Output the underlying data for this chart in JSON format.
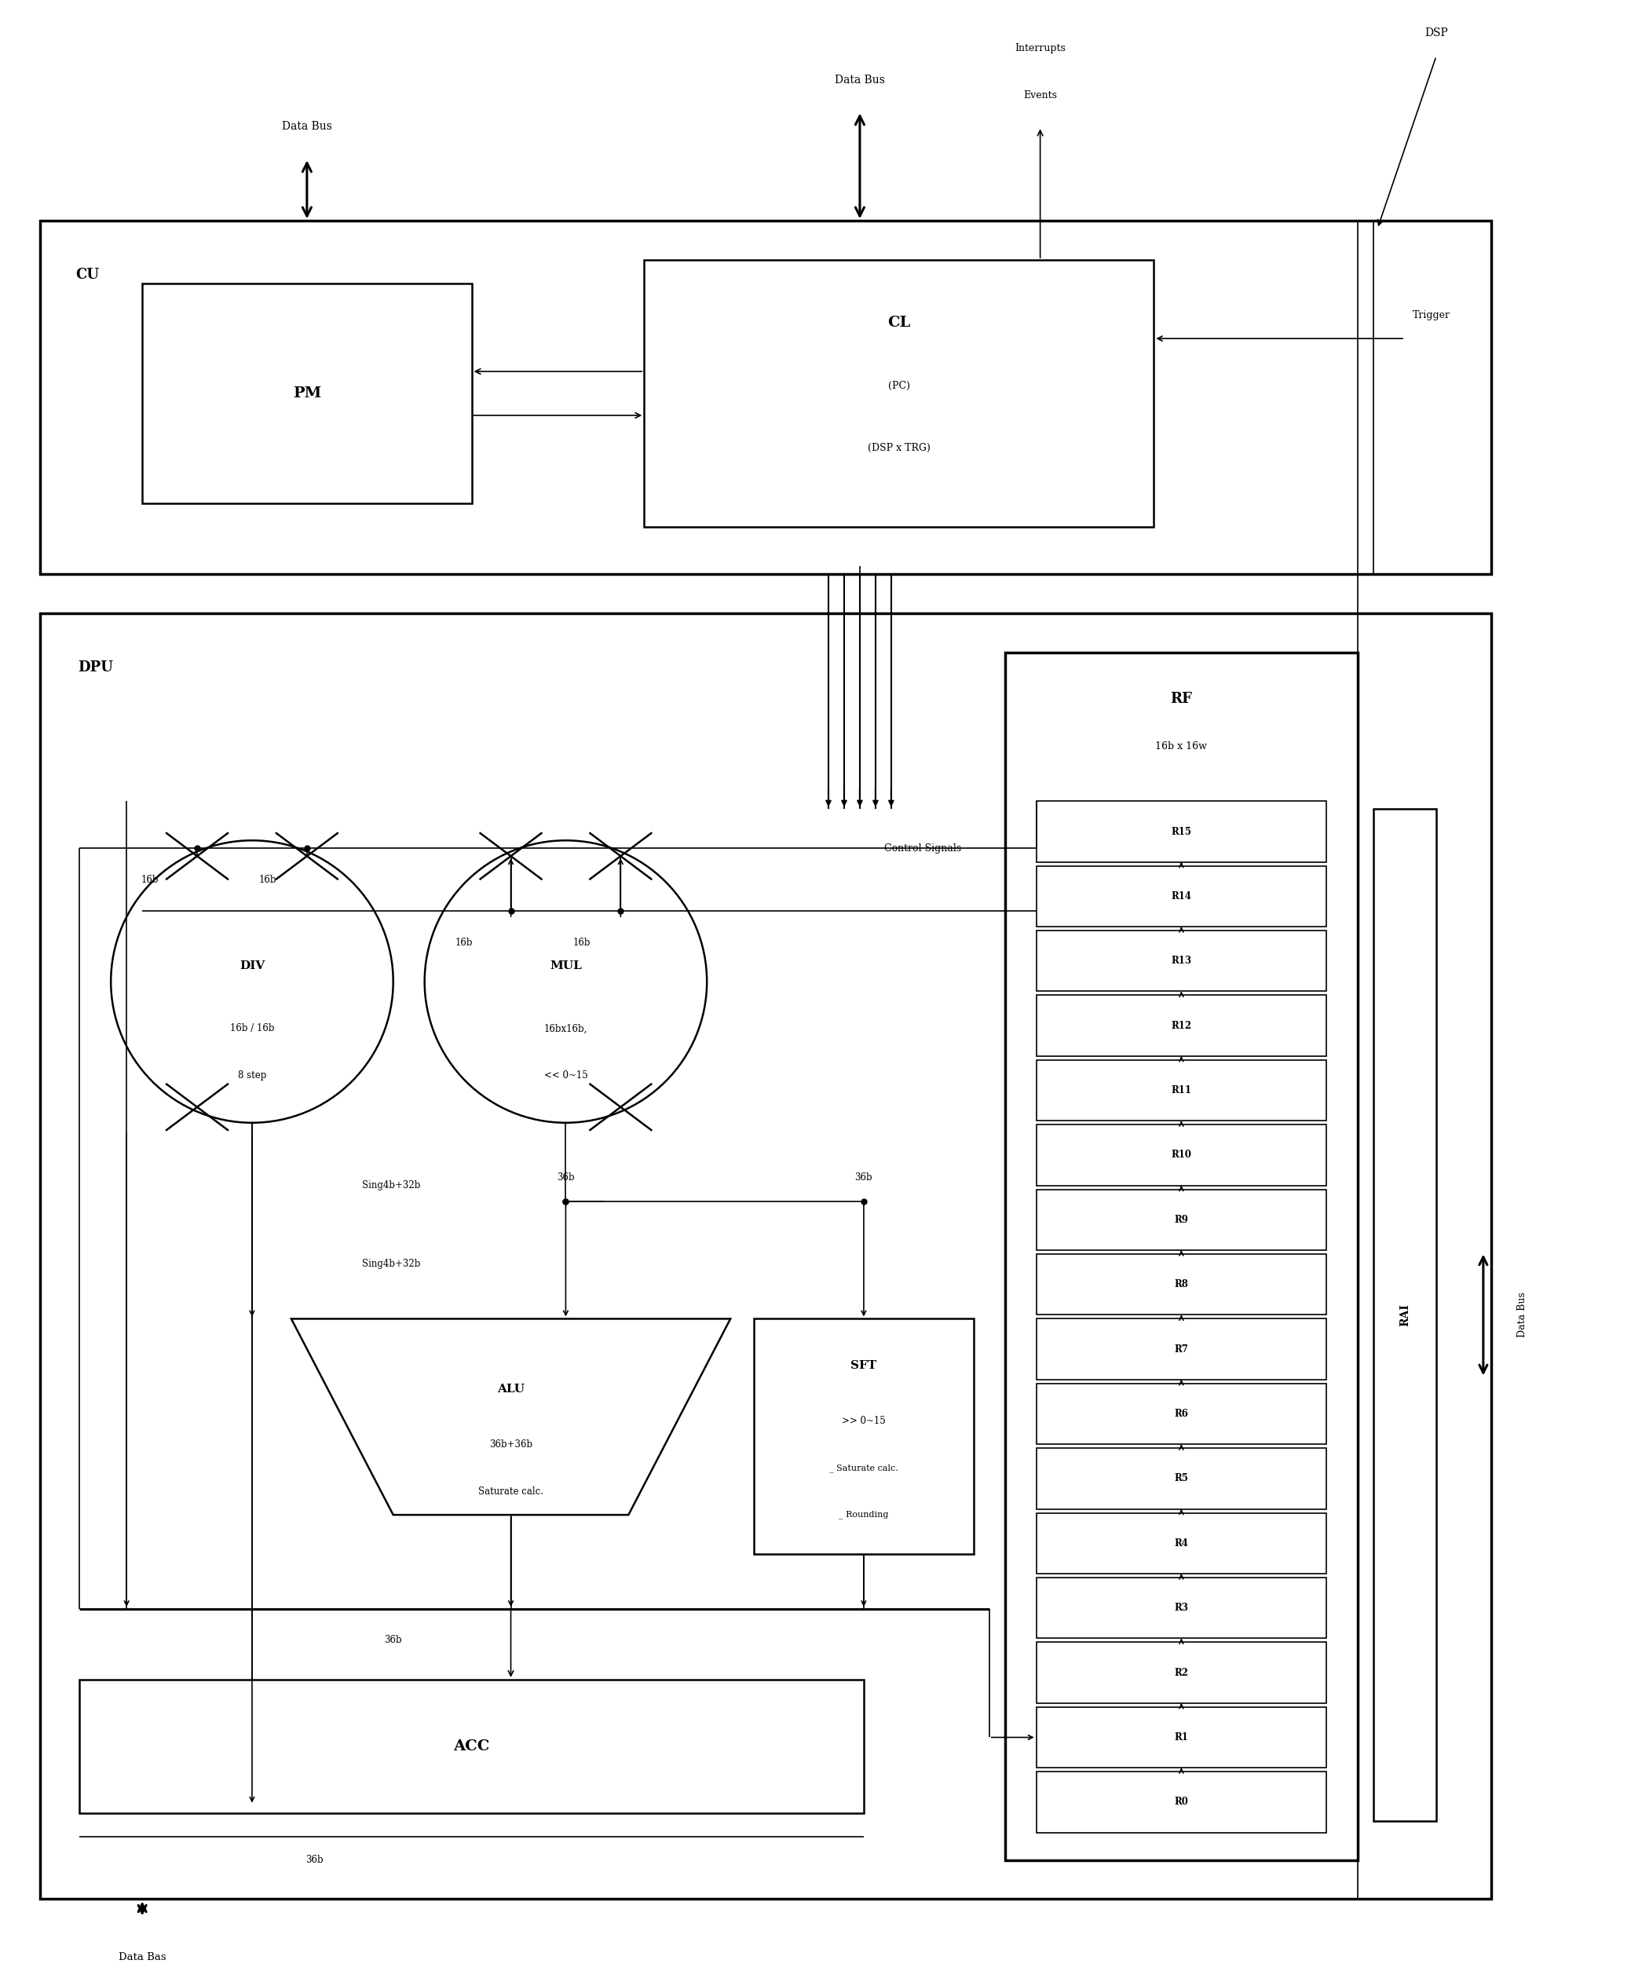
{
  "bg_color": "#ffffff",
  "fig_width": 20.91,
  "fig_height": 25.24,
  "registers": [
    "R15",
    "R14",
    "R13",
    "R12",
    "R11",
    "R10",
    "R9",
    "R8",
    "R7",
    "R6",
    "R5",
    "R4",
    "R3",
    "R2",
    "R1",
    "R0"
  ]
}
